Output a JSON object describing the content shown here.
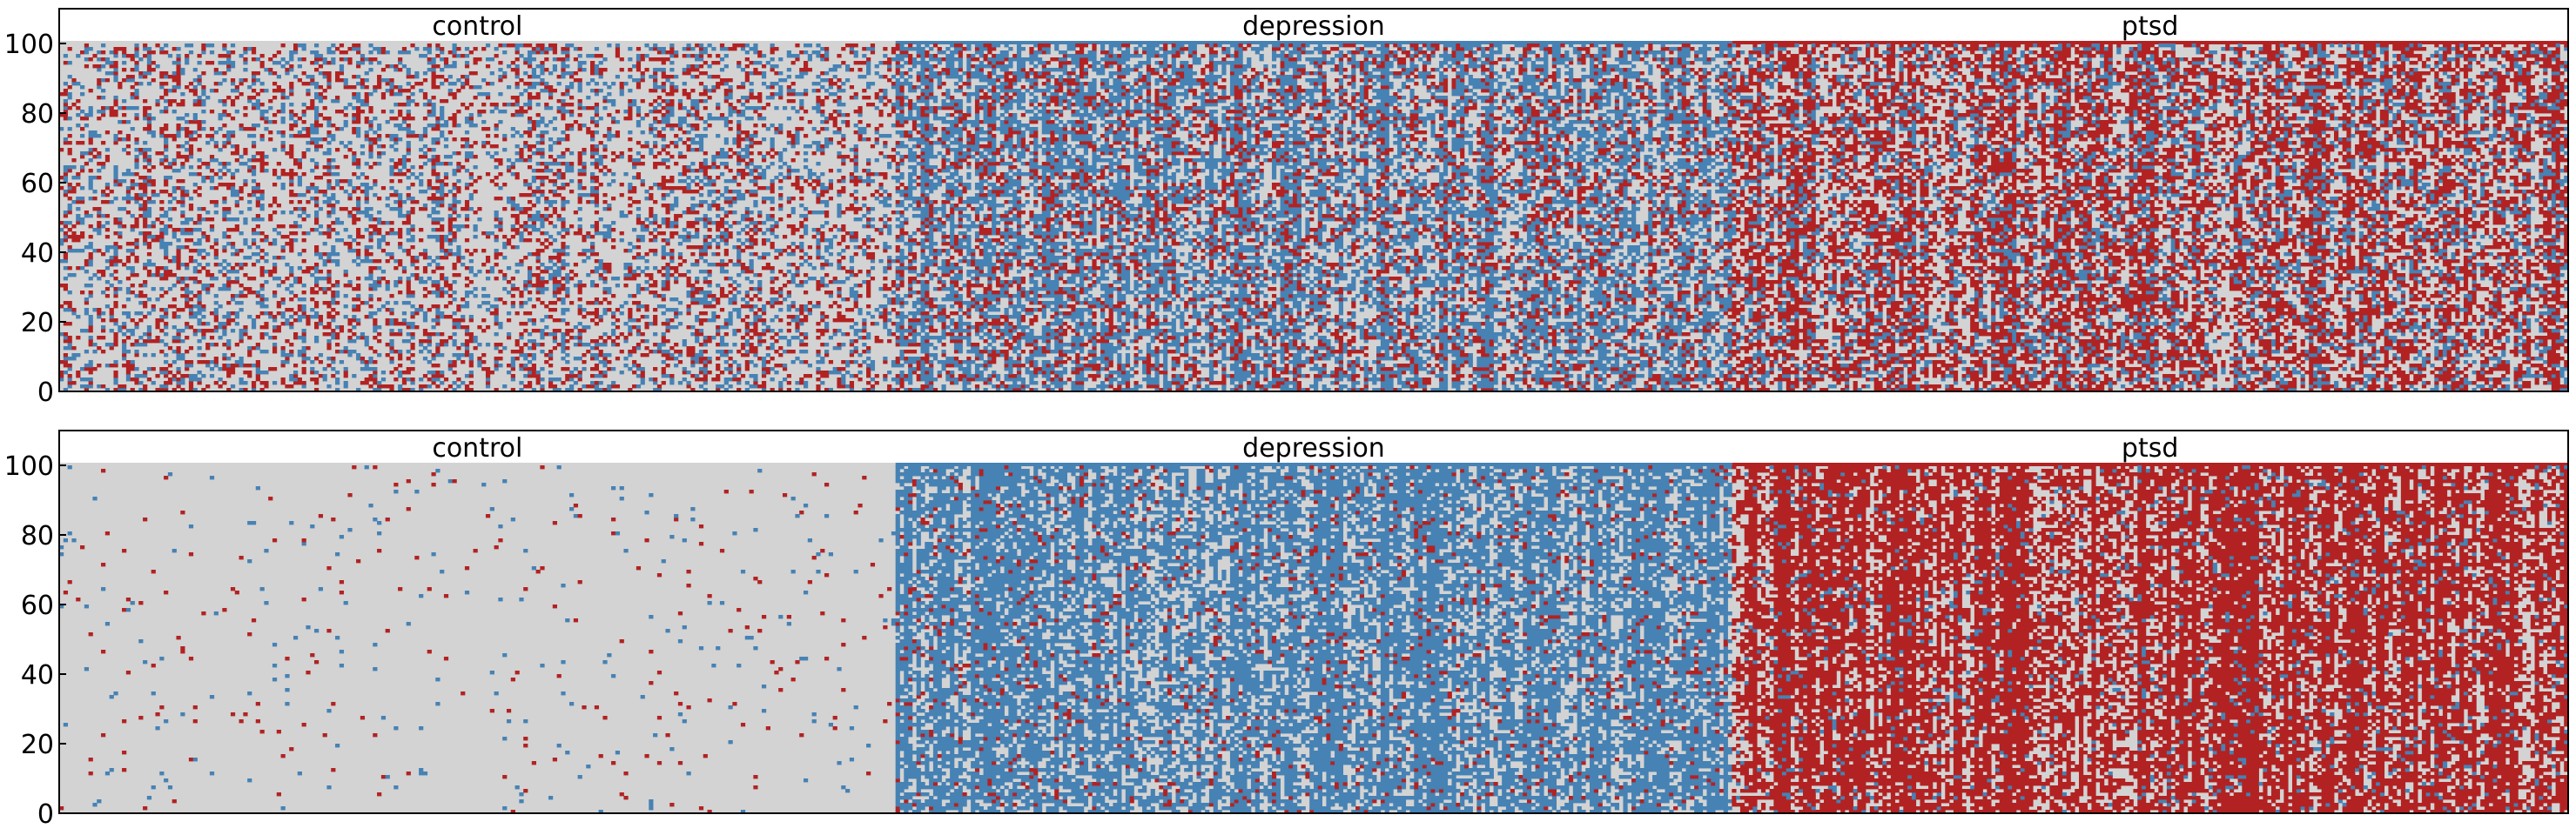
{
  "palette": {
    "background": "#d3d3d3",
    "control": "#ffffff",
    "depression": "#4682b4",
    "ptsd": "#b22222"
  },
  "chart_data": [
    {
      "type": "heatmap",
      "title": "",
      "xlabel": "",
      "ylabel": "",
      "ylim": [
        0,
        100
      ],
      "yticks": [
        "0",
        "20",
        "40",
        "60",
        "80",
        "100"
      ],
      "grid": false,
      "cell_states": [
        "none",
        "depression",
        "ptsd"
      ],
      "state_colors": [
        "#d3d3d3",
        "#4682b4",
        "#b22222"
      ],
      "groups": [
        {
          "name": "control",
          "columns": 200,
          "header_color": "#d3d3d3",
          "density": {
            "depression": 0.18,
            "ptsd": 0.18
          }
        },
        {
          "name": "depression",
          "columns": 200,
          "header_color": "#4682b4",
          "density": {
            "depression": 0.42,
            "ptsd": 0.2
          }
        },
        {
          "name": "ptsd",
          "columns": 200,
          "header_color": "#b22222",
          "density": {
            "depression": 0.2,
            "ptsd": 0.42
          }
        }
      ]
    },
    {
      "type": "heatmap",
      "title": "",
      "xlabel": "",
      "ylabel": "",
      "ylim": [
        0,
        100
      ],
      "yticks": [
        "0",
        "20",
        "40",
        "60",
        "80",
        "100"
      ],
      "grid": false,
      "cell_states": [
        "none",
        "depression",
        "ptsd"
      ],
      "state_colors": [
        "#d3d3d3",
        "#4682b4",
        "#b22222"
      ],
      "groups": [
        {
          "name": "control",
          "columns": 200,
          "header_color": "#d3d3d3",
          "density": {
            "depression": 0.01,
            "ptsd": 0.01
          }
        },
        {
          "name": "depression",
          "columns": 200,
          "header_color": "#4682b4",
          "density": {
            "depression": 0.62,
            "ptsd": 0.06
          }
        },
        {
          "name": "ptsd",
          "columns": 200,
          "header_color": "#b22222",
          "density": {
            "depression": 0.06,
            "ptsd": 0.66
          }
        }
      ]
    }
  ]
}
